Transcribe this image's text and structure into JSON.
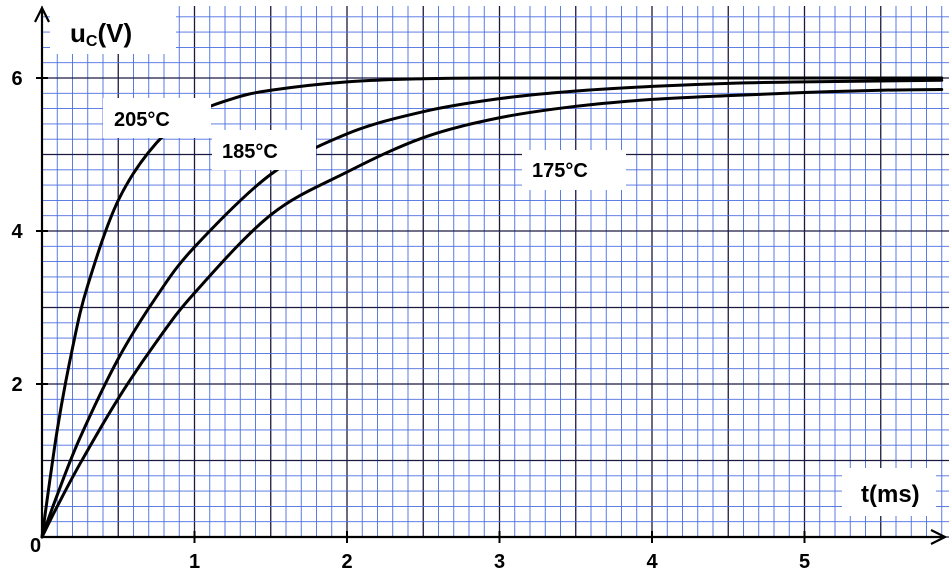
{
  "chart_data": {
    "type": "line",
    "title": "",
    "ylabel_main": "u",
    "ylabel_sub": "C",
    "ylabel_unit": "(V)",
    "xlabel": "t(ms)",
    "origin_label": "0",
    "xlim": [
      0,
      5.9
    ],
    "ylim": [
      0,
      6.9
    ],
    "x_ticks": [
      1,
      2,
      3,
      4,
      5
    ],
    "y_ticks": [
      2,
      4,
      6
    ],
    "grid": true,
    "grid_minor_step_x": 0.1,
    "grid_minor_step_y": 0.2,
    "colors": {
      "grid_minor": "#4a6de0",
      "grid_major": "#1a1a40",
      "curve": "#000000",
      "background": "#ffffff"
    },
    "series": [
      {
        "name": "205°C",
        "x": [
          0,
          0.1,
          0.2,
          0.3,
          0.5,
          0.75,
          1.0,
          1.25,
          1.5,
          2.0,
          2.5,
          3.0,
          4.0,
          5.0,
          5.9
        ],
        "y": [
          0,
          1.4,
          2.47,
          3.29,
          4.4,
          5.15,
          5.53,
          5.73,
          5.84,
          5.95,
          5.99,
          6.0,
          6.0,
          6.0,
          6.0
        ]
      },
      {
        "name": "185°C",
        "x": [
          0,
          0.1,
          0.25,
          0.5,
          0.75,
          1.0,
          1.5,
          2.0,
          2.5,
          3.0,
          3.5,
          4.0,
          4.5,
          5.0,
          5.9
        ],
        "y": [
          0,
          0.55,
          1.3,
          2.33,
          3.14,
          3.79,
          4.74,
          5.27,
          5.56,
          5.73,
          5.83,
          5.89,
          5.93,
          5.95,
          5.97
        ]
      },
      {
        "name": "175°C",
        "x": [
          0,
          0.1,
          0.25,
          0.5,
          0.75,
          1.0,
          1.5,
          2.0,
          2.5,
          3.0,
          3.5,
          4.0,
          4.5,
          5.0,
          5.5,
          5.9
        ],
        "y": [
          0,
          0.4,
          0.96,
          1.81,
          2.55,
          3.19,
          4.21,
          4.77,
          5.22,
          5.48,
          5.63,
          5.72,
          5.77,
          5.81,
          5.84,
          5.85
        ]
      }
    ]
  }
}
